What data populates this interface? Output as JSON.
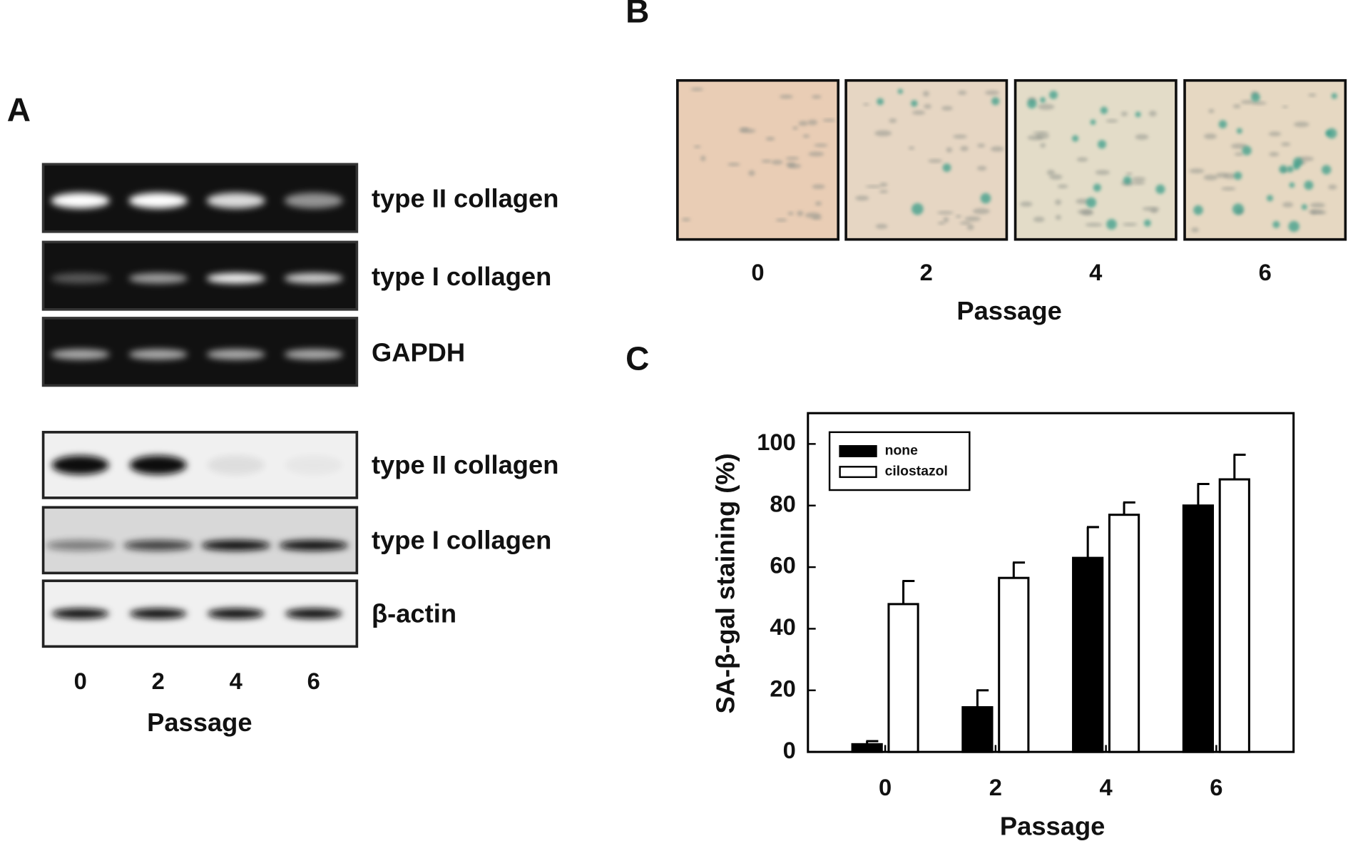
{
  "panel_a": {
    "panel_label": "A",
    "gel_labels": [
      "type II collagen",
      "type I collagen",
      "GAPDH"
    ],
    "blot_labels": [
      "type II collagen",
      "type I collagen",
      "β-actin"
    ],
    "lanes": [
      "0",
      "2",
      "4",
      "6"
    ],
    "x_label": "Passage"
  },
  "panel_b": {
    "panel_label": "B",
    "lanes": [
      "0",
      "2",
      "4",
      "6"
    ],
    "x_label": "Passage"
  },
  "chart_data": {
    "type": "bar",
    "panel_label": "C",
    "categories": [
      "0",
      "2",
      "4",
      "6"
    ],
    "series": [
      {
        "name": "none",
        "color": "#000000",
        "values": [
          2.5,
          14.5,
          63,
          80
        ],
        "errors": [
          1,
          5.5,
          10,
          7
        ]
      },
      {
        "name": "cilostazol",
        "color": "#ffffff",
        "values": [
          48,
          56.5,
          77,
          88.5
        ],
        "errors": [
          7.5,
          5,
          4,
          8
        ]
      }
    ],
    "ylim": [
      0,
      110
    ],
    "yticks": [
      0,
      20,
      40,
      60,
      80,
      100
    ],
    "y_label": "SA-β-gal staining (%)",
    "x_label": "Passage",
    "legend": "upper left",
    "grid": false
  }
}
